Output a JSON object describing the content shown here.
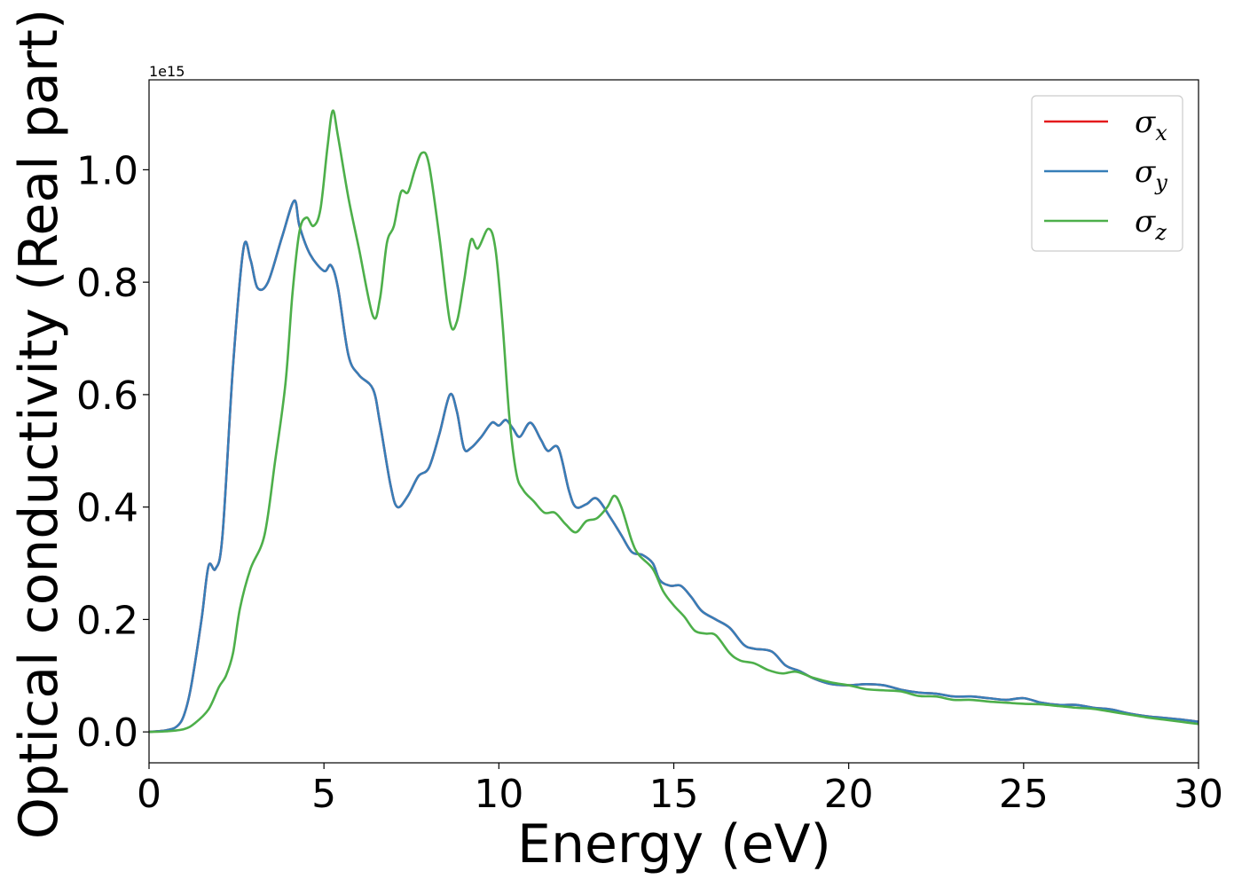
{
  "chart_data": {
    "type": "line",
    "title": "",
    "xlabel": "Energy (eV)",
    "ylabel": "Optical conductivity (Real part)",
    "y_offset_text": "1e15",
    "xlim": [
      0,
      30
    ],
    "ylim": [
      -0.055,
      1.16
    ],
    "x_ticks": [
      0,
      5,
      10,
      15,
      20,
      25,
      30
    ],
    "x_tick_labels": [
      "0",
      "5",
      "10",
      "15",
      "20",
      "25",
      "30"
    ],
    "y_ticks": [
      0.0,
      0.2,
      0.4,
      0.6,
      0.8,
      1.0
    ],
    "y_tick_labels": [
      "0.0",
      "0.2",
      "0.4",
      "0.6",
      "0.8",
      "1.0"
    ],
    "grid": false,
    "legend_position": "top-right",
    "series": [
      {
        "name": "σx",
        "symbol": "σ",
        "subscript": "x",
        "color": "#e41a1c",
        "points": [
          [
            0,
            0
          ],
          [
            0.5,
            0.003
          ],
          [
            0.8,
            0.01
          ],
          [
            1.0,
            0.03
          ],
          [
            1.2,
            0.08
          ],
          [
            1.5,
            0.2
          ],
          [
            1.7,
            0.295
          ],
          [
            1.9,
            0.29
          ],
          [
            2.1,
            0.35
          ],
          [
            2.4,
            0.65
          ],
          [
            2.7,
            0.86
          ],
          [
            2.9,
            0.84
          ],
          [
            3.1,
            0.79
          ],
          [
            3.4,
            0.8
          ],
          [
            3.8,
            0.88
          ],
          [
            4.15,
            0.945
          ],
          [
            4.3,
            0.9
          ],
          [
            4.6,
            0.85
          ],
          [
            5.0,
            0.82
          ],
          [
            5.2,
            0.83
          ],
          [
            5.4,
            0.79
          ],
          [
            5.7,
            0.67
          ],
          [
            6.0,
            0.635
          ],
          [
            6.4,
            0.61
          ],
          [
            6.6,
            0.55
          ],
          [
            6.9,
            0.44
          ],
          [
            7.1,
            0.4
          ],
          [
            7.4,
            0.42
          ],
          [
            7.7,
            0.455
          ],
          [
            8.0,
            0.47
          ],
          [
            8.3,
            0.53
          ],
          [
            8.6,
            0.6
          ],
          [
            8.8,
            0.57
          ],
          [
            9.0,
            0.505
          ],
          [
            9.2,
            0.505
          ],
          [
            9.5,
            0.525
          ],
          [
            9.8,
            0.55
          ],
          [
            10.0,
            0.545
          ],
          [
            10.2,
            0.555
          ],
          [
            10.4,
            0.54
          ],
          [
            10.6,
            0.525
          ],
          [
            10.9,
            0.55
          ],
          [
            11.2,
            0.52
          ],
          [
            11.4,
            0.5
          ],
          [
            11.7,
            0.505
          ],
          [
            12.0,
            0.43
          ],
          [
            12.2,
            0.4
          ],
          [
            12.5,
            0.405
          ],
          [
            12.8,
            0.415
          ],
          [
            13.2,
            0.38
          ],
          [
            13.5,
            0.35
          ],
          [
            13.8,
            0.32
          ],
          [
            14.1,
            0.315
          ],
          [
            14.4,
            0.3
          ],
          [
            14.6,
            0.27
          ],
          [
            14.9,
            0.26
          ],
          [
            15.2,
            0.26
          ],
          [
            15.5,
            0.24
          ],
          [
            15.8,
            0.215
          ],
          [
            16.2,
            0.2
          ],
          [
            16.6,
            0.185
          ],
          [
            17.0,
            0.155
          ],
          [
            17.3,
            0.148
          ],
          [
            17.8,
            0.143
          ],
          [
            18.2,
            0.118
          ],
          [
            18.6,
            0.108
          ],
          [
            19.0,
            0.095
          ],
          [
            19.5,
            0.085
          ],
          [
            20.0,
            0.083
          ],
          [
            20.5,
            0.085
          ],
          [
            21.0,
            0.083
          ],
          [
            21.5,
            0.075
          ],
          [
            22.0,
            0.07
          ],
          [
            22.5,
            0.068
          ],
          [
            23.0,
            0.063
          ],
          [
            23.5,
            0.063
          ],
          [
            24.0,
            0.06
          ],
          [
            24.5,
            0.057
          ],
          [
            25.0,
            0.06
          ],
          [
            25.5,
            0.052
          ],
          [
            26.0,
            0.048
          ],
          [
            26.5,
            0.048
          ],
          [
            27.0,
            0.043
          ],
          [
            27.5,
            0.04
          ],
          [
            28.0,
            0.033
          ],
          [
            28.5,
            0.028
          ],
          [
            29.0,
            0.025
          ],
          [
            29.5,
            0.022
          ],
          [
            30.0,
            0.018
          ]
        ]
      },
      {
        "name": "σy",
        "symbol": "σ",
        "subscript": "y",
        "color": "#377eb8",
        "points": [
          [
            0,
            0
          ],
          [
            0.5,
            0.003
          ],
          [
            0.8,
            0.01
          ],
          [
            1.0,
            0.03
          ],
          [
            1.2,
            0.08
          ],
          [
            1.5,
            0.2
          ],
          [
            1.7,
            0.295
          ],
          [
            1.9,
            0.29
          ],
          [
            2.1,
            0.35
          ],
          [
            2.4,
            0.65
          ],
          [
            2.7,
            0.86
          ],
          [
            2.9,
            0.84
          ],
          [
            3.1,
            0.79
          ],
          [
            3.4,
            0.8
          ],
          [
            3.8,
            0.88
          ],
          [
            4.15,
            0.945
          ],
          [
            4.3,
            0.9
          ],
          [
            4.6,
            0.85
          ],
          [
            5.0,
            0.82
          ],
          [
            5.2,
            0.83
          ],
          [
            5.4,
            0.79
          ],
          [
            5.7,
            0.67
          ],
          [
            6.0,
            0.635
          ],
          [
            6.4,
            0.61
          ],
          [
            6.6,
            0.55
          ],
          [
            6.9,
            0.44
          ],
          [
            7.1,
            0.4
          ],
          [
            7.4,
            0.42
          ],
          [
            7.7,
            0.455
          ],
          [
            8.0,
            0.47
          ],
          [
            8.3,
            0.53
          ],
          [
            8.6,
            0.6
          ],
          [
            8.8,
            0.57
          ],
          [
            9.0,
            0.505
          ],
          [
            9.2,
            0.505
          ],
          [
            9.5,
            0.525
          ],
          [
            9.8,
            0.55
          ],
          [
            10.0,
            0.545
          ],
          [
            10.2,
            0.555
          ],
          [
            10.4,
            0.54
          ],
          [
            10.6,
            0.525
          ],
          [
            10.9,
            0.55
          ],
          [
            11.2,
            0.52
          ],
          [
            11.4,
            0.5
          ],
          [
            11.7,
            0.505
          ],
          [
            12.0,
            0.43
          ],
          [
            12.2,
            0.4
          ],
          [
            12.5,
            0.405
          ],
          [
            12.8,
            0.415
          ],
          [
            13.2,
            0.38
          ],
          [
            13.5,
            0.35
          ],
          [
            13.8,
            0.32
          ],
          [
            14.1,
            0.315
          ],
          [
            14.4,
            0.3
          ],
          [
            14.6,
            0.27
          ],
          [
            14.9,
            0.26
          ],
          [
            15.2,
            0.26
          ],
          [
            15.5,
            0.24
          ],
          [
            15.8,
            0.215
          ],
          [
            16.2,
            0.2
          ],
          [
            16.6,
            0.185
          ],
          [
            17.0,
            0.155
          ],
          [
            17.3,
            0.148
          ],
          [
            17.8,
            0.143
          ],
          [
            18.2,
            0.118
          ],
          [
            18.6,
            0.108
          ],
          [
            19.0,
            0.095
          ],
          [
            19.5,
            0.085
          ],
          [
            20.0,
            0.083
          ],
          [
            20.5,
            0.085
          ],
          [
            21.0,
            0.083
          ],
          [
            21.5,
            0.075
          ],
          [
            22.0,
            0.07
          ],
          [
            22.5,
            0.068
          ],
          [
            23.0,
            0.063
          ],
          [
            23.5,
            0.063
          ],
          [
            24.0,
            0.06
          ],
          [
            24.5,
            0.057
          ],
          [
            25.0,
            0.06
          ],
          [
            25.5,
            0.052
          ],
          [
            26.0,
            0.048
          ],
          [
            26.5,
            0.048
          ],
          [
            27.0,
            0.043
          ],
          [
            27.5,
            0.04
          ],
          [
            28.0,
            0.033
          ],
          [
            28.5,
            0.028
          ],
          [
            29.0,
            0.025
          ],
          [
            29.5,
            0.022
          ],
          [
            30.0,
            0.018
          ]
        ]
      },
      {
        "name": "σz",
        "symbol": "σ",
        "subscript": "z",
        "color": "#4daf4a",
        "points": [
          [
            0,
            0
          ],
          [
            0.5,
            0.001
          ],
          [
            1.0,
            0.005
          ],
          [
            1.3,
            0.015
          ],
          [
            1.7,
            0.04
          ],
          [
            2.0,
            0.08
          ],
          [
            2.2,
            0.1
          ],
          [
            2.4,
            0.14
          ],
          [
            2.6,
            0.22
          ],
          [
            2.9,
            0.29
          ],
          [
            3.3,
            0.35
          ],
          [
            3.6,
            0.48
          ],
          [
            3.9,
            0.62
          ],
          [
            4.1,
            0.78
          ],
          [
            4.3,
            0.89
          ],
          [
            4.5,
            0.915
          ],
          [
            4.7,
            0.9
          ],
          [
            4.9,
            0.93
          ],
          [
            5.1,
            1.04
          ],
          [
            5.25,
            1.105
          ],
          [
            5.4,
            1.06
          ],
          [
            5.7,
            0.95
          ],
          [
            6.0,
            0.86
          ],
          [
            6.4,
            0.74
          ],
          [
            6.6,
            0.77
          ],
          [
            6.8,
            0.87
          ],
          [
            7.0,
            0.9
          ],
          [
            7.2,
            0.96
          ],
          [
            7.4,
            0.96
          ],
          [
            7.6,
            1.0
          ],
          [
            7.8,
            1.03
          ],
          [
            8.0,
            1.01
          ],
          [
            8.3,
            0.88
          ],
          [
            8.6,
            0.73
          ],
          [
            8.8,
            0.73
          ],
          [
            9.0,
            0.8
          ],
          [
            9.2,
            0.875
          ],
          [
            9.4,
            0.86
          ],
          [
            9.7,
            0.895
          ],
          [
            9.9,
            0.86
          ],
          [
            10.1,
            0.73
          ],
          [
            10.3,
            0.56
          ],
          [
            10.5,
            0.46
          ],
          [
            10.7,
            0.43
          ],
          [
            11.0,
            0.41
          ],
          [
            11.3,
            0.39
          ],
          [
            11.6,
            0.39
          ],
          [
            11.9,
            0.37
          ],
          [
            12.2,
            0.355
          ],
          [
            12.5,
            0.375
          ],
          [
            12.8,
            0.38
          ],
          [
            13.1,
            0.4
          ],
          [
            13.3,
            0.42
          ],
          [
            13.5,
            0.4
          ],
          [
            13.8,
            0.34
          ],
          [
            14.0,
            0.315
          ],
          [
            14.4,
            0.29
          ],
          [
            14.7,
            0.25
          ],
          [
            15.0,
            0.225
          ],
          [
            15.3,
            0.205
          ],
          [
            15.6,
            0.18
          ],
          [
            15.9,
            0.175
          ],
          [
            16.2,
            0.172
          ],
          [
            16.6,
            0.14
          ],
          [
            16.9,
            0.127
          ],
          [
            17.3,
            0.122
          ],
          [
            17.7,
            0.11
          ],
          [
            18.1,
            0.104
          ],
          [
            18.5,
            0.107
          ],
          [
            19.0,
            0.096
          ],
          [
            19.5,
            0.088
          ],
          [
            20.0,
            0.083
          ],
          [
            20.5,
            0.076
          ],
          [
            21.0,
            0.074
          ],
          [
            21.5,
            0.072
          ],
          [
            22.0,
            0.064
          ],
          [
            22.5,
            0.063
          ],
          [
            23.0,
            0.057
          ],
          [
            23.5,
            0.057
          ],
          [
            24.0,
            0.054
          ],
          [
            24.5,
            0.052
          ],
          [
            25.0,
            0.05
          ],
          [
            25.5,
            0.049
          ],
          [
            26.0,
            0.046
          ],
          [
            26.5,
            0.043
          ],
          [
            27.0,
            0.041
          ],
          [
            27.5,
            0.036
          ],
          [
            28.0,
            0.031
          ],
          [
            28.5,
            0.026
          ],
          [
            29.0,
            0.022
          ],
          [
            29.5,
            0.018
          ],
          [
            30.0,
            0.014
          ]
        ]
      }
    ]
  }
}
